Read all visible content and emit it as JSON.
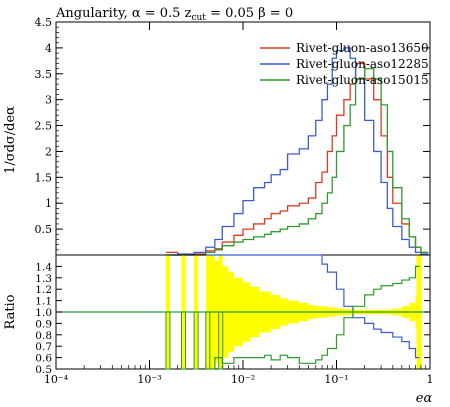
{
  "chart_data": [
    {
      "type": "line",
      "title": "Angularity, α = 0.5 z_cut = 0.05 β = 0",
      "title_parts": {
        "main": "Angularity, α = 0.5 z",
        "sub1": "cut",
        "rest": " = 0.05 β = 0"
      },
      "xlabel": "",
      "ylabel": "1/σdσ/deα",
      "x_scale": "log",
      "xlim": [
        0.0001,
        1.0
      ],
      "ylim": [
        0,
        4.5
      ],
      "yticks": [
        "0.5",
        "1",
        "1.5",
        "2",
        "2.5",
        "3",
        "3.5",
        "4",
        "4.5"
      ],
      "legend_placement": "top-right",
      "x": [
        0.0015,
        0.002,
        0.003,
        0.004,
        0.005,
        0.006,
        0.008,
        0.01,
        0.013,
        0.017,
        0.02,
        0.025,
        0.03,
        0.04,
        0.05,
        0.06,
        0.07,
        0.08,
        0.09,
        0.1,
        0.12,
        0.14,
        0.16,
        0.2,
        0.25,
        0.3,
        0.35,
        0.4,
        0.5,
        0.6,
        0.7,
        0.8
      ],
      "series": [
        {
          "name": "Rivet-gluon-aso13650",
          "color": "#e03a1e",
          "values": [
            0.05,
            0.0,
            0.02,
            0.08,
            0.12,
            0.25,
            0.38,
            0.5,
            0.6,
            0.7,
            0.8,
            0.85,
            0.95,
            1.0,
            1.1,
            1.4,
            1.6,
            2.0,
            2.3,
            2.7,
            3.0,
            3.3,
            3.7,
            3.4,
            3.0,
            2.3,
            1.5,
            1.0,
            0.6,
            0.35,
            0.15,
            0.05
          ]
        },
        {
          "name": "Rivet-gluon-aso12285",
          "color": "#3b5bd6",
          "values": [
            0.0,
            0.02,
            0.05,
            0.15,
            0.3,
            0.55,
            0.8,
            1.05,
            1.3,
            1.4,
            1.55,
            1.65,
            1.95,
            2.05,
            2.3,
            2.6,
            3.0,
            3.3,
            3.8,
            3.95,
            4.0,
            3.8,
            3.4,
            2.6,
            2.0,
            1.4,
            0.9,
            0.55,
            0.3,
            0.15,
            0.05,
            0.02
          ]
        },
        {
          "name": "Rivet-gluon-aso15015",
          "color": "#2e9b2e",
          "values": [
            0.0,
            0.0,
            0.0,
            0.05,
            0.1,
            0.18,
            0.25,
            0.3,
            0.35,
            0.4,
            0.45,
            0.5,
            0.55,
            0.6,
            0.7,
            0.8,
            1.0,
            1.2,
            1.5,
            2.0,
            2.5,
            2.9,
            3.4,
            3.6,
            3.4,
            2.9,
            2.0,
            1.3,
            0.7,
            0.35,
            0.15,
            0.05
          ]
        }
      ]
    },
    {
      "type": "line",
      "title": "",
      "xlabel": "eα",
      "ylabel": "Ratio",
      "x_scale": "log",
      "xlim": [
        0.0001,
        1.0
      ],
      "ylim": [
        0.5,
        1.5
      ],
      "xticks": [
        "10⁻⁴",
        "10⁻³",
        "10⁻²",
        "10⁻¹",
        "1"
      ],
      "yticks": [
        "0.5",
        "0.6",
        "0.7",
        "0.8",
        "0.9",
        "1.0",
        "1.1",
        "1.2",
        "1.3",
        "1.4"
      ],
      "x": [
        0.004,
        0.005,
        0.006,
        0.008,
        0.01,
        0.013,
        0.017,
        0.02,
        0.025,
        0.03,
        0.04,
        0.05,
        0.06,
        0.07,
        0.08,
        0.1,
        0.12,
        0.15,
        0.2,
        0.25,
        0.3,
        0.4,
        0.5,
        0.6,
        0.7
      ],
      "series": [
        {
          "name": "Rivet-gluon-aso12285",
          "color": "#3b5bd6",
          "values": [
            1.5,
            1.5,
            1.5,
            1.5,
            1.5,
            1.5,
            1.5,
            1.5,
            1.5,
            1.5,
            1.5,
            1.5,
            1.5,
            1.42,
            1.35,
            1.2,
            1.05,
            0.95,
            0.9,
            0.85,
            0.82,
            0.78,
            0.74,
            0.68,
            0.6
          ]
        },
        {
          "name": "Rivet-gluon-aso15015",
          "color": "#2e9b2e",
          "values": [
            0.5,
            0.6,
            0.55,
            0.6,
            0.6,
            0.6,
            0.62,
            0.58,
            0.62,
            0.6,
            0.55,
            0.55,
            0.58,
            0.62,
            0.68,
            0.8,
            0.95,
            1.05,
            1.15,
            1.2,
            1.23,
            1.25,
            1.28,
            1.3,
            1.4
          ]
        }
      ],
      "band": {
        "name": "uncertainty",
        "color": "#ffff00",
        "x": [
          0.004,
          0.005,
          0.006,
          0.007,
          0.008,
          0.01,
          0.012,
          0.015,
          0.02,
          0.025,
          0.03,
          0.04,
          0.05,
          0.06,
          0.08,
          0.1,
          0.12,
          0.15,
          0.2,
          0.3,
          0.4,
          0.5,
          0.6,
          0.7
        ],
        "half_width": [
          0.5,
          0.45,
          0.4,
          0.35,
          0.3,
          0.26,
          0.22,
          0.18,
          0.15,
          0.12,
          0.1,
          0.08,
          0.06,
          0.05,
          0.04,
          0.03,
          0.025,
          0.02,
          0.02,
          0.02,
          0.03,
          0.05,
          0.08,
          0.15
        ]
      }
    }
  ]
}
